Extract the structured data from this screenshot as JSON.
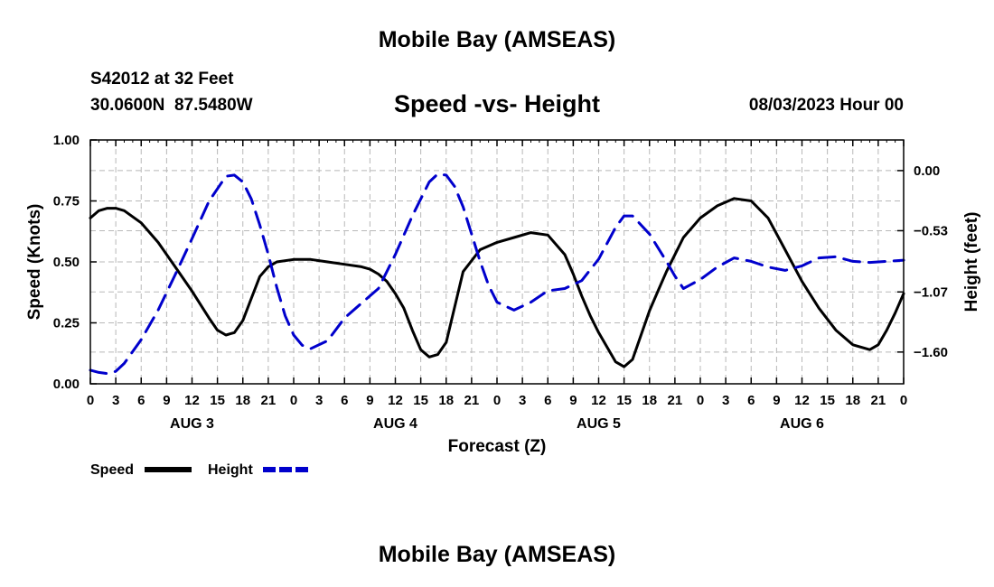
{
  "header": {
    "title": "Mobile Bay (AMSEAS)",
    "station": "S42012 at 32 Feet",
    "coordinates": "30.0600N  87.5480W",
    "chart_title": "Speed -vs- Height",
    "datetime": "08/03/2023 Hour 00"
  },
  "footer": {
    "title": "Mobile Bay (AMSEAS)"
  },
  "chart_data": {
    "type": "line",
    "title": "Speed -vs- Height",
    "xlabel": "Forecast (Z)",
    "ylabel": "Speed (Knots)",
    "y2label": "Height (feet)",
    "xlim": [
      0,
      96
    ],
    "ylim": [
      0,
      1
    ],
    "y2lim": [
      -1.88,
      0.27
    ],
    "x_ticks": [
      "0",
      "3",
      "6",
      "9",
      "12",
      "15",
      "18",
      "21",
      "0",
      "3",
      "6",
      "9",
      "12",
      "15",
      "18",
      "21",
      "0",
      "3",
      "6",
      "9",
      "12",
      "15",
      "18",
      "21",
      "0",
      "3",
      "6",
      "9",
      "12",
      "15",
      "18",
      "21",
      "0"
    ],
    "day_labels": [
      "AUG 3",
      "AUG 4",
      "AUG 5",
      "AUG 6"
    ],
    "y_ticks": [
      "0.00",
      "0.25",
      "0.50",
      "0.75",
      "1.00"
    ],
    "y2_ticks": [
      "0.00",
      "−0.53",
      "−1.07",
      "−1.60"
    ],
    "grid": true,
    "legend_position": "bottom-left",
    "series": [
      {
        "name": "Speed",
        "axis": "left",
        "color": "#000000",
        "style": "solid",
        "x": [
          0,
          1,
          2,
          3,
          4,
          6,
          8,
          10,
          12,
          14,
          15,
          16,
          17,
          18,
          19,
          20,
          21,
          22,
          24,
          26,
          28,
          30,
          32,
          33,
          34,
          35,
          36,
          37,
          38,
          39,
          40,
          41,
          42,
          44,
          46,
          48,
          50,
          52,
          54,
          56,
          57,
          58,
          59,
          60,
          61,
          62,
          63,
          64,
          65,
          66,
          67,
          68,
          69,
          70,
          72,
          74,
          76,
          78,
          80,
          82,
          84,
          86,
          88,
          90,
          92,
          93,
          94,
          95,
          96
        ],
        "values": [
          0.68,
          0.71,
          0.72,
          0.72,
          0.71,
          0.66,
          0.58,
          0.48,
          0.38,
          0.27,
          0.22,
          0.2,
          0.21,
          0.26,
          0.35,
          0.44,
          0.48,
          0.5,
          0.51,
          0.51,
          0.5,
          0.49,
          0.48,
          0.47,
          0.45,
          0.42,
          0.37,
          0.31,
          0.22,
          0.14,
          0.11,
          0.12,
          0.17,
          0.46,
          0.55,
          0.58,
          0.6,
          0.62,
          0.61,
          0.53,
          0.45,
          0.36,
          0.28,
          0.21,
          0.15,
          0.09,
          0.07,
          0.1,
          0.2,
          0.3,
          0.38,
          0.46,
          0.53,
          0.6,
          0.68,
          0.73,
          0.76,
          0.75,
          0.68,
          0.55,
          0.42,
          0.31,
          0.22,
          0.16,
          0.14,
          0.16,
          0.22,
          0.29,
          0.37
        ]
      },
      {
        "name": "Height",
        "axis": "right",
        "color": "#0000cc",
        "style": "dashed",
        "x": [
          0,
          1,
          2,
          3,
          4,
          6,
          8,
          10,
          12,
          14,
          16,
          17,
          18,
          19,
          20,
          21,
          22,
          23,
          24,
          25,
          26,
          28,
          30,
          32,
          34,
          36,
          38,
          40,
          41,
          42,
          43,
          44,
          45,
          46,
          47,
          48,
          50,
          52,
          54,
          56,
          58,
          60,
          62,
          63,
          64,
          66,
          68,
          69,
          70,
          72,
          74,
          76,
          78,
          80,
          82,
          84,
          86,
          88,
          90,
          92,
          94,
          96
        ],
        "values": [
          -1.76,
          -1.78,
          -1.79,
          -1.77,
          -1.7,
          -1.49,
          -1.23,
          -0.92,
          -0.6,
          -0.27,
          -0.05,
          -0.04,
          -0.1,
          -0.25,
          -0.48,
          -0.74,
          -1.03,
          -1.28,
          -1.45,
          -1.54,
          -1.57,
          -1.5,
          -1.3,
          -1.17,
          -1.04,
          -0.74,
          -0.4,
          -0.1,
          -0.03,
          -0.04,
          -0.14,
          -0.32,
          -0.56,
          -0.8,
          -1.01,
          -1.16,
          -1.23,
          -1.16,
          -1.06,
          -1.04,
          -0.97,
          -0.78,
          -0.5,
          -0.4,
          -0.4,
          -0.56,
          -0.8,
          -0.93,
          -1.04,
          -0.96,
          -0.85,
          -0.77,
          -0.8,
          -0.85,
          -0.88,
          -0.84,
          -0.77,
          -0.76,
          -0.8,
          -0.81,
          -0.8,
          -0.79
        ]
      }
    ]
  }
}
